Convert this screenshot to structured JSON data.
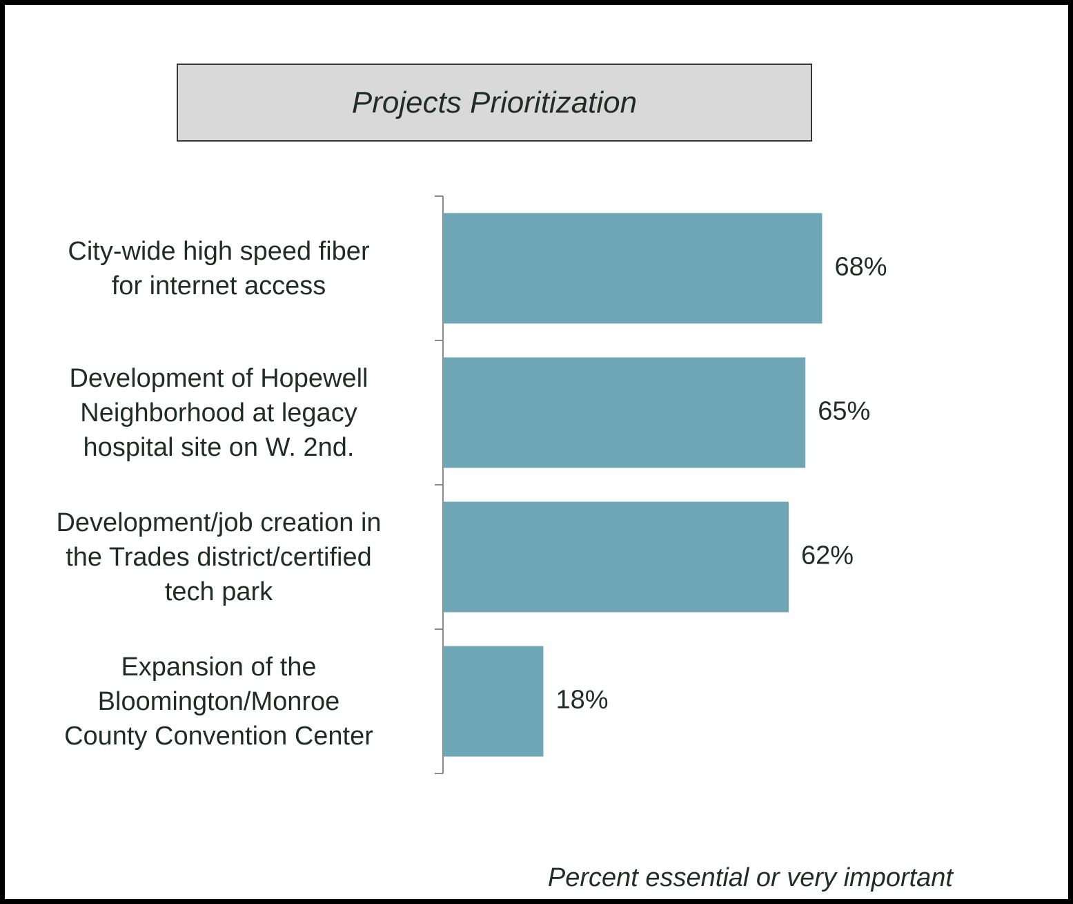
{
  "title": "Projects Prioritization",
  "footer": "Percent essential or very important",
  "colors": {
    "bar": "#6fa6b5",
    "text": "#1f2d26",
    "axis": "#8a8a8a",
    "title_bg": "#d9d9d9"
  },
  "chart_data": {
    "type": "bar",
    "orientation": "horizontal",
    "title": "Projects Prioritization",
    "xlabel": "Percent essential or very important",
    "ylabel": "",
    "categories": [
      [
        "City-wide high speed fiber",
        "for internet access"
      ],
      [
        "Development of Hopewell",
        "Neighborhood at legacy",
        "hospital site on W. 2nd."
      ],
      [
        "Development/job creation in",
        "the Trades district/certified",
        "tech park"
      ],
      [
        "Expansion of the",
        "Bloomington/Monroe",
        "County Convention Center"
      ]
    ],
    "values": [
      68,
      65,
      62,
      18
    ],
    "value_labels": [
      "68%",
      "65%",
      "62%",
      "18%"
    ],
    "xlim": [
      0,
      100
    ],
    "grid": false,
    "legend": "none"
  }
}
